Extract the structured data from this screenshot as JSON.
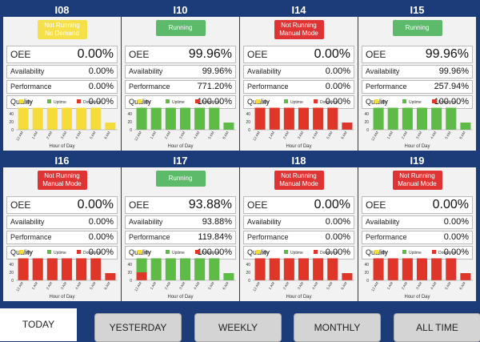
{
  "panels": [
    {
      "id": "I08",
      "status": [
        "Not Running",
        "No Demand"
      ],
      "status_type": "nodemand",
      "oee": "0.00%",
      "availability": "0.00%",
      "performance": "0.00%",
      "quality": "0.00%",
      "bars": [
        {
          "idle": 55,
          "up": 0,
          "down": 0
        },
        {
          "idle": 55,
          "up": 0,
          "down": 0
        },
        {
          "idle": 55,
          "up": 0,
          "down": 0
        },
        {
          "idle": 55,
          "up": 0,
          "down": 0
        },
        {
          "idle": 55,
          "up": 0,
          "down": 0
        },
        {
          "idle": 55,
          "up": 0,
          "down": 0
        },
        {
          "idle": 18,
          "up": 0,
          "down": 0
        }
      ]
    },
    {
      "id": "I10",
      "status": [
        "Running"
      ],
      "status_type": "run",
      "oee": "99.96%",
      "availability": "99.96%",
      "performance": "771.20%",
      "quality": "100.00%",
      "bars": [
        {
          "idle": 0,
          "up": 55,
          "down": 0
        },
        {
          "idle": 0,
          "up": 55,
          "down": 0
        },
        {
          "idle": 0,
          "up": 55,
          "down": 0
        },
        {
          "idle": 0,
          "up": 55,
          "down": 0
        },
        {
          "idle": 0,
          "up": 55,
          "down": 0
        },
        {
          "idle": 0,
          "up": 55,
          "down": 0
        },
        {
          "idle": 0,
          "up": 18,
          "down": 0
        }
      ]
    },
    {
      "id": "I14",
      "status": [
        "Not Running",
        "Manual Mode"
      ],
      "status_type": "manual",
      "oee": "0.00%",
      "availability": "0.00%",
      "performance": "0.00%",
      "quality": "0.00%",
      "bars": [
        {
          "idle": 0,
          "up": 0,
          "down": 55
        },
        {
          "idle": 0,
          "up": 0,
          "down": 55
        },
        {
          "idle": 0,
          "up": 0,
          "down": 55
        },
        {
          "idle": 0,
          "up": 0,
          "down": 55
        },
        {
          "idle": 0,
          "up": 0,
          "down": 55
        },
        {
          "idle": 0,
          "up": 0,
          "down": 55
        },
        {
          "idle": 0,
          "up": 0,
          "down": 18
        }
      ]
    },
    {
      "id": "I15",
      "status": [
        "Running"
      ],
      "status_type": "run",
      "oee": "99.96%",
      "availability": "99.96%",
      "performance": "257.94%",
      "quality": "100.00%",
      "bars": [
        {
          "idle": 0,
          "up": 55,
          "down": 0
        },
        {
          "idle": 0,
          "up": 55,
          "down": 0
        },
        {
          "idle": 0,
          "up": 55,
          "down": 0
        },
        {
          "idle": 0,
          "up": 55,
          "down": 0
        },
        {
          "idle": 0,
          "up": 55,
          "down": 0
        },
        {
          "idle": 0,
          "up": 55,
          "down": 0
        },
        {
          "idle": 0,
          "up": 18,
          "down": 0
        }
      ]
    },
    {
      "id": "I16",
      "status": [
        "Not Running",
        "Manual Mode"
      ],
      "status_type": "manual",
      "oee": "0.00%",
      "availability": "0.00%",
      "performance": "0.00%",
      "quality": "0.00%",
      "bars": [
        {
          "idle": 0,
          "up": 0,
          "down": 55
        },
        {
          "idle": 0,
          "up": 0,
          "down": 55
        },
        {
          "idle": 0,
          "up": 0,
          "down": 55
        },
        {
          "idle": 0,
          "up": 0,
          "down": 55
        },
        {
          "idle": 0,
          "up": 0,
          "down": 55
        },
        {
          "idle": 0,
          "up": 0,
          "down": 55
        },
        {
          "idle": 0,
          "up": 0,
          "down": 18
        }
      ]
    },
    {
      "id": "I17",
      "status": [
        "Running"
      ],
      "status_type": "run",
      "oee": "93.88%",
      "availability": "93.88%",
      "performance": "119.84%",
      "quality": "100.00%",
      "bars": [
        {
          "idle": 0,
          "up": 35,
          "down": 20
        },
        {
          "idle": 0,
          "up": 55,
          "down": 0
        },
        {
          "idle": 0,
          "up": 55,
          "down": 0
        },
        {
          "idle": 0,
          "up": 55,
          "down": 0
        },
        {
          "idle": 0,
          "up": 55,
          "down": 0
        },
        {
          "idle": 0,
          "up": 55,
          "down": 0
        },
        {
          "idle": 0,
          "up": 18,
          "down": 0
        }
      ]
    },
    {
      "id": "I18",
      "status": [
        "Not Running",
        "Manual Mode"
      ],
      "status_type": "manual",
      "oee": "0.00%",
      "availability": "0.00%",
      "performance": "0.00%",
      "quality": "0.00%",
      "bars": [
        {
          "idle": 0,
          "up": 0,
          "down": 55
        },
        {
          "idle": 0,
          "up": 0,
          "down": 55
        },
        {
          "idle": 0,
          "up": 0,
          "down": 55
        },
        {
          "idle": 0,
          "up": 0,
          "down": 55
        },
        {
          "idle": 0,
          "up": 0,
          "down": 55
        },
        {
          "idle": 0,
          "up": 0,
          "down": 55
        },
        {
          "idle": 0,
          "up": 0,
          "down": 18
        }
      ]
    },
    {
      "id": "I19",
      "status": [
        "Not Running",
        "Manual Mode"
      ],
      "status_type": "manual",
      "oee": "0.00%",
      "availability": "0.00%",
      "performance": "0.00%",
      "quality": "0.00%",
      "bars": [
        {
          "idle": 0,
          "up": 0,
          "down": 55
        },
        {
          "idle": 0,
          "up": 0,
          "down": 55
        },
        {
          "idle": 0,
          "up": 0,
          "down": 55
        },
        {
          "idle": 0,
          "up": 0,
          "down": 55
        },
        {
          "idle": 0,
          "up": 0,
          "down": 55
        },
        {
          "idle": 0,
          "up": 0,
          "down": 55
        },
        {
          "idle": 0,
          "up": 0,
          "down": 18
        }
      ]
    }
  ],
  "labels": {
    "oee": "OEE",
    "availability": "Availability",
    "performance": "Performance",
    "quality": "Quality"
  },
  "chart_common": {
    "categories": [
      "12 AM",
      "1 AM",
      "2 AM",
      "3 AM",
      "4 AM",
      "5 AM",
      "6 AM"
    ],
    "yticks": [
      "0",
      "20",
      "40"
    ],
    "ymax": 60,
    "xlabel": "Hour of Day",
    "legend": [
      "Idle",
      "Uptime",
      "Downtime"
    ],
    "colors": {
      "idle": "#f5dc3a",
      "up": "#5dbb46",
      "down": "#e03529"
    }
  },
  "tabs": {
    "active": "TODAY",
    "others": [
      "YESTERDAY",
      "WEEKLY",
      "MONTHLY",
      "ALL TIME"
    ]
  }
}
